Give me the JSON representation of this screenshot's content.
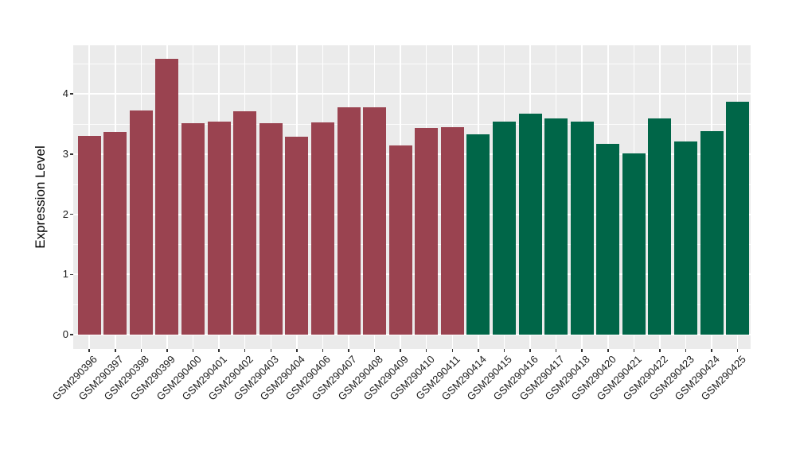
{
  "figure": {
    "background_color": "#FFFFFF",
    "panel_background_color": "#EBEBEB",
    "grid_color": "#FFFFFF",
    "tick_mark_color": "#333333",
    "tick_label_color": "#1A1A1A"
  },
  "chart_data": {
    "type": "bar",
    "title": "",
    "xlabel": "",
    "ylabel": "Expression Level",
    "ylim": [
      0,
      4.81
    ],
    "yticks": [
      0,
      1,
      2,
      3,
      4
    ],
    "yticks_minor": [
      0.5,
      1.5,
      2.5,
      3.5,
      4.5
    ],
    "grid": "on",
    "legend": "none",
    "group_colors": {
      "group1": "#9A4350",
      "group2": "#006648"
    },
    "bars": [
      {
        "label": "GSM290396",
        "value": 3.3,
        "group": "group1"
      },
      {
        "label": "GSM290397",
        "value": 3.37,
        "group": "group1"
      },
      {
        "label": "GSM290398",
        "value": 3.72,
        "group": "group1"
      },
      {
        "label": "GSM290399",
        "value": 4.58,
        "group": "group1"
      },
      {
        "label": "GSM290400",
        "value": 3.51,
        "group": "group1"
      },
      {
        "label": "GSM290401",
        "value": 3.54,
        "group": "group1"
      },
      {
        "label": "GSM290402",
        "value": 3.71,
        "group": "group1"
      },
      {
        "label": "GSM290403",
        "value": 3.51,
        "group": "group1"
      },
      {
        "label": "GSM290404",
        "value": 3.29,
        "group": "group1"
      },
      {
        "label": "GSM290406",
        "value": 3.53,
        "group": "group1"
      },
      {
        "label": "GSM290407",
        "value": 3.78,
        "group": "group1"
      },
      {
        "label": "GSM290408",
        "value": 3.78,
        "group": "group1"
      },
      {
        "label": "GSM290409",
        "value": 3.14,
        "group": "group1"
      },
      {
        "label": "GSM290410",
        "value": 3.43,
        "group": "group1"
      },
      {
        "label": "GSM290411",
        "value": 3.45,
        "group": "group1"
      },
      {
        "label": "GSM290414",
        "value": 3.33,
        "group": "group2"
      },
      {
        "label": "GSM290415",
        "value": 3.54,
        "group": "group2"
      },
      {
        "label": "GSM290416",
        "value": 3.67,
        "group": "group2"
      },
      {
        "label": "GSM290417",
        "value": 3.59,
        "group": "group2"
      },
      {
        "label": "GSM290418",
        "value": 3.54,
        "group": "group2"
      },
      {
        "label": "GSM290420",
        "value": 3.17,
        "group": "group2"
      },
      {
        "label": "GSM290421",
        "value": 3.01,
        "group": "group2"
      },
      {
        "label": "GSM290422",
        "value": 3.59,
        "group": "group2"
      },
      {
        "label": "GSM290423",
        "value": 3.21,
        "group": "group2"
      },
      {
        "label": "GSM290424",
        "value": 3.38,
        "group": "group2"
      },
      {
        "label": "GSM290425",
        "value": 3.87,
        "group": "group2"
      }
    ]
  }
}
